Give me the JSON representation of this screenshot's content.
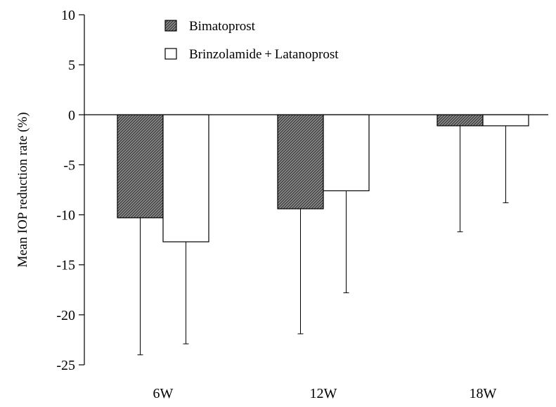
{
  "chart_data": {
    "type": "bar",
    "title": "",
    "xlabel": "",
    "ylabel": "Mean IOP reduction rate (%)",
    "ylim": [
      -25,
      10
    ],
    "yticks": [
      10,
      5,
      0,
      -5,
      -10,
      -15,
      -20,
      -25
    ],
    "ytick_labels": [
      "10",
      "5",
      "0",
      "-5",
      "-10",
      "-15",
      "-20",
      "-25"
    ],
    "categories": [
      "6W",
      "12W",
      "18W"
    ],
    "series": [
      {
        "name": "Bimatoprost",
        "values": [
          -10.3,
          -9.4,
          -1.1
        ],
        "error_lower": [
          -24.0,
          -21.9,
          -11.7
        ],
        "fill": "hatched-gray"
      },
      {
        "name": "Brinzolamide + Latanoprost",
        "values": [
          -12.7,
          -7.6,
          -1.1
        ],
        "error_lower": [
          -22.9,
          -17.8,
          -8.8
        ],
        "fill": "white"
      }
    ],
    "legend_position": "top-center",
    "grid": false
  }
}
